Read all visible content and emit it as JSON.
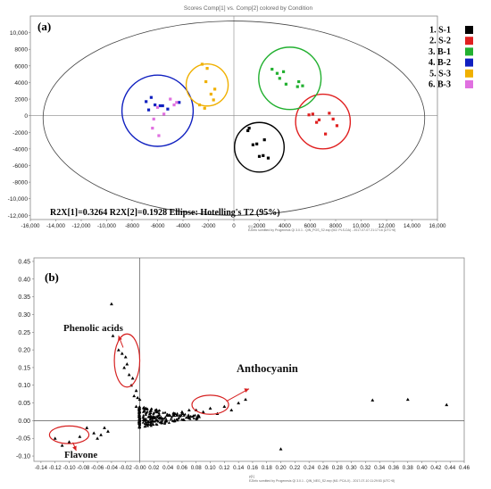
{
  "chart_data": [
    {
      "panel": "(a)",
      "type": "scatter",
      "title": "Scores Comp[1] vs. Comp[2] colored by Condition",
      "xlabel": "t[1]",
      "ylabel": "",
      "xlim": [
        -16000,
        16000
      ],
      "ylim": [
        -12500,
        12000
      ],
      "xticks": [
        -16000,
        -14000,
        -12000,
        -10000,
        -8000,
        -6000,
        -4000,
        -2000,
        0,
        2000,
        4000,
        6000,
        8000,
        10000,
        12000,
        14000,
        16000
      ],
      "xtick_labels": [
        "-16,000",
        "-14,000",
        "-12,000",
        "-10,000",
        "-8000",
        "-6000",
        "-4000",
        "-2000",
        "0",
        "2000",
        "4000",
        "6000",
        "8000",
        "10,000",
        "12,000",
        "14,000",
        "16,000"
      ],
      "yticks": [
        10000,
        8000,
        6000,
        4000,
        2000,
        0,
        -2000,
        -4000,
        -6000,
        -8000,
        -10000,
        -12000
      ],
      "ytick_labels": [
        "10,000",
        "8000",
        "6000",
        "4000",
        "2000",
        "0",
        "-2000",
        "-4000",
        "-6000",
        "-8000",
        "-10,000",
        "-12,000"
      ],
      "stats": "R2X[1]=0.3264  R2X[2]=0.1928  Ellipse: Hotelling's T2 (95%)",
      "footer": "EZinfo somitted by Progenesis QI 3.0.1 - QIN_POS_S2.ezp (M2: PLS-DA) - 2017-07-07 21:17:16 (UTC+8)",
      "ellipse": {
        "cx": 0,
        "cy": -300,
        "rx": 15000,
        "ry": 11700
      },
      "series": [
        {
          "name": "1. S-1",
          "color": "#000000",
          "x": [
            1200,
            2400,
            1500,
            2000,
            2700,
            1800,
            2300,
            1100
          ],
          "y": [
            -1500,
            -2900,
            -3500,
            -4900,
            -5100,
            -3400,
            -4800,
            -1800
          ],
          "circle": {
            "cx": 2000,
            "cy": -3800,
            "r": 1950
          }
        },
        {
          "name": "2. S-2",
          "color": "#e02020",
          "x": [
            5900,
            6700,
            7500,
            8100,
            7200,
            6500,
            7800,
            6200
          ],
          "y": [
            100,
            -500,
            300,
            -1200,
            -2200,
            -800,
            -400,
            200
          ],
          "circle": {
            "cx": 7000,
            "cy": -700,
            "r": 2150
          }
        },
        {
          "name": "3. B-1",
          "color": "#22b030",
          "x": [
            3000,
            3400,
            3600,
            4100,
            5100,
            5400,
            5000,
            3900
          ],
          "y": [
            5600,
            5100,
            4500,
            3800,
            4100,
            3600,
            3500,
            5300
          ],
          "circle": {
            "cx": 4400,
            "cy": 4500,
            "r": 2450
          }
        },
        {
          "name": "4. B-2",
          "color": "#1020c0",
          "x": [
            -6900,
            -6500,
            -5800,
            -5200,
            -6200,
            -4300,
            -5600,
            -6700
          ],
          "y": [
            1700,
            2200,
            1200,
            800,
            1300,
            1600,
            1200,
            700
          ],
          "circle": {
            "cx": -6000,
            "cy": 600,
            "r": 2800
          }
        },
        {
          "name": "5. S-3",
          "color": "#f0b000",
          "x": [
            -2500,
            -2100,
            -1500,
            -1800,
            -2700,
            -2300,
            -1600,
            -2200
          ],
          "y": [
            6200,
            5700,
            3200,
            2600,
            1300,
            900,
            1900,
            4100
          ],
          "circle": {
            "cx": -2100,
            "cy": 3700,
            "r": 1650
          }
        },
        {
          "name": "6. B-3",
          "color": "#e070e0",
          "x": [
            -6000,
            -5000,
            -4700,
            -6300,
            -6400,
            -5900,
            -4500,
            -5500
          ],
          "y": [
            1000,
            2000,
            1300,
            -400,
            -1500,
            -2400,
            1600,
            200
          ]
        }
      ],
      "legend": [
        "1. S-1",
        "2. S-2",
        "3. B-1",
        "4. B-2",
        "5. S-3",
        "6. B-3"
      ]
    },
    {
      "panel": "(b)",
      "type": "scatter",
      "title": "",
      "xlabel": "p[1]",
      "ylabel": "",
      "xlim": [
        -0.15,
        0.46
      ],
      "ylim": [
        -0.115,
        0.46
      ],
      "xticks": [
        -0.14,
        -0.12,
        -0.1,
        -0.08,
        -0.06,
        -0.04,
        -0.02,
        0,
        0.02,
        0.04,
        0.06,
        0.08,
        0.1,
        0.12,
        0.14,
        0.16,
        0.18,
        0.2,
        0.22,
        0.24,
        0.26,
        0.28,
        0.3,
        0.32,
        0.34,
        0.36,
        0.38,
        0.4,
        0.42,
        0.44,
        0.46
      ],
      "xtick_labels": [
        "-0.14",
        "-0.12",
        "-0.10",
        "-0.08",
        "-0.06",
        "-0.04",
        "-0.02",
        "-0.00",
        "0.02",
        "0.04",
        "0.06",
        "0.08",
        "0.10",
        "0.12",
        "0.14",
        "0.16",
        "0.18",
        "0.20",
        "0.22",
        "0.24",
        "0.26",
        "0.28",
        "0.30",
        "0.32",
        "0.34",
        "0.36",
        "0.38",
        "0.40",
        "0.42",
        "0.44",
        "0.46"
      ],
      "yticks": [
        0.45,
        0.4,
        0.35,
        0.3,
        0.25,
        0.2,
        0.15,
        0.1,
        0.05,
        0,
        -0.05,
        -0.1
      ],
      "ytick_labels": [
        "0.45",
        "0.40",
        "0.35",
        "0.30",
        "0.25",
        "0.20",
        "0.15",
        "0.10",
        "0.05",
        "0.00",
        "-0.05",
        "-0.10"
      ],
      "footer": "EZinfo somitted by Progenesis QI 3.0.1 - QIN_NEG_S2.ezp (M1: PCA-X) - 2017-07-10 11:29:53 (UTC+8)",
      "points": {
        "x": [
          -0.04,
          -0.038,
          -0.03,
          -0.025,
          -0.02,
          -0.022,
          -0.018,
          -0.015,
          -0.01,
          -0.012,
          -0.005,
          -0.008,
          -0.003,
          0.0,
          -0.045,
          -0.05,
          -0.055,
          -0.06,
          -0.065,
          -0.1,
          -0.11,
          -0.12,
          -0.085,
          -0.075,
          0.06,
          0.08,
          0.1,
          0.12,
          0.13,
          0.14,
          0.15,
          0.11,
          0.09,
          0.07,
          0.33,
          0.38,
          0.435,
          0.2,
          0.02,
          0.04,
          0.05,
          0.03,
          -0.005,
          0.01
        ],
        "y": [
          0.33,
          0.24,
          0.2,
          0.19,
          0.18,
          0.15,
          0.16,
          0.13,
          0.12,
          0.1,
          0.085,
          0.07,
          0.065,
          0.06,
          -0.03,
          -0.02,
          -0.04,
          -0.05,
          -0.035,
          -0.06,
          -0.07,
          -0.05,
          -0.045,
          -0.02,
          0.025,
          0.03,
          0.035,
          0.04,
          0.03,
          0.05,
          0.06,
          0.02,
          0.025,
          0.03,
          0.058,
          0.06,
          0.045,
          -0.08,
          0.01,
          0.015,
          0.02,
          0.01,
          0.04,
          -0.01
        ]
      },
      "dense_cluster": {
        "x_range": [
          -0.03,
          0.09
        ],
        "y_range": [
          -0.02,
          0.04
        ],
        "center": [
          0.0,
          0.01
        ]
      },
      "annotations": [
        {
          "text": "Phenolic acids",
          "ellipse": {
            "cx": -0.018,
            "cy": 0.17,
            "rx": 0.018,
            "ry": 0.075
          },
          "arrow_to": [
            -0.03,
            0.24
          ]
        },
        {
          "text": "Anthocyanin",
          "ellipse": {
            "cx": 0.1,
            "cy": 0.045,
            "rx": 0.026,
            "ry": 0.027
          },
          "arrow_to": [
            0.155,
            0.09
          ]
        },
        {
          "text": "Flavone",
          "ellipse": {
            "cx": -0.1,
            "cy": -0.04,
            "rx": 0.028,
            "ry": 0.025
          },
          "arrow_to": [
            -0.09,
            -0.085
          ]
        }
      ]
    }
  ]
}
